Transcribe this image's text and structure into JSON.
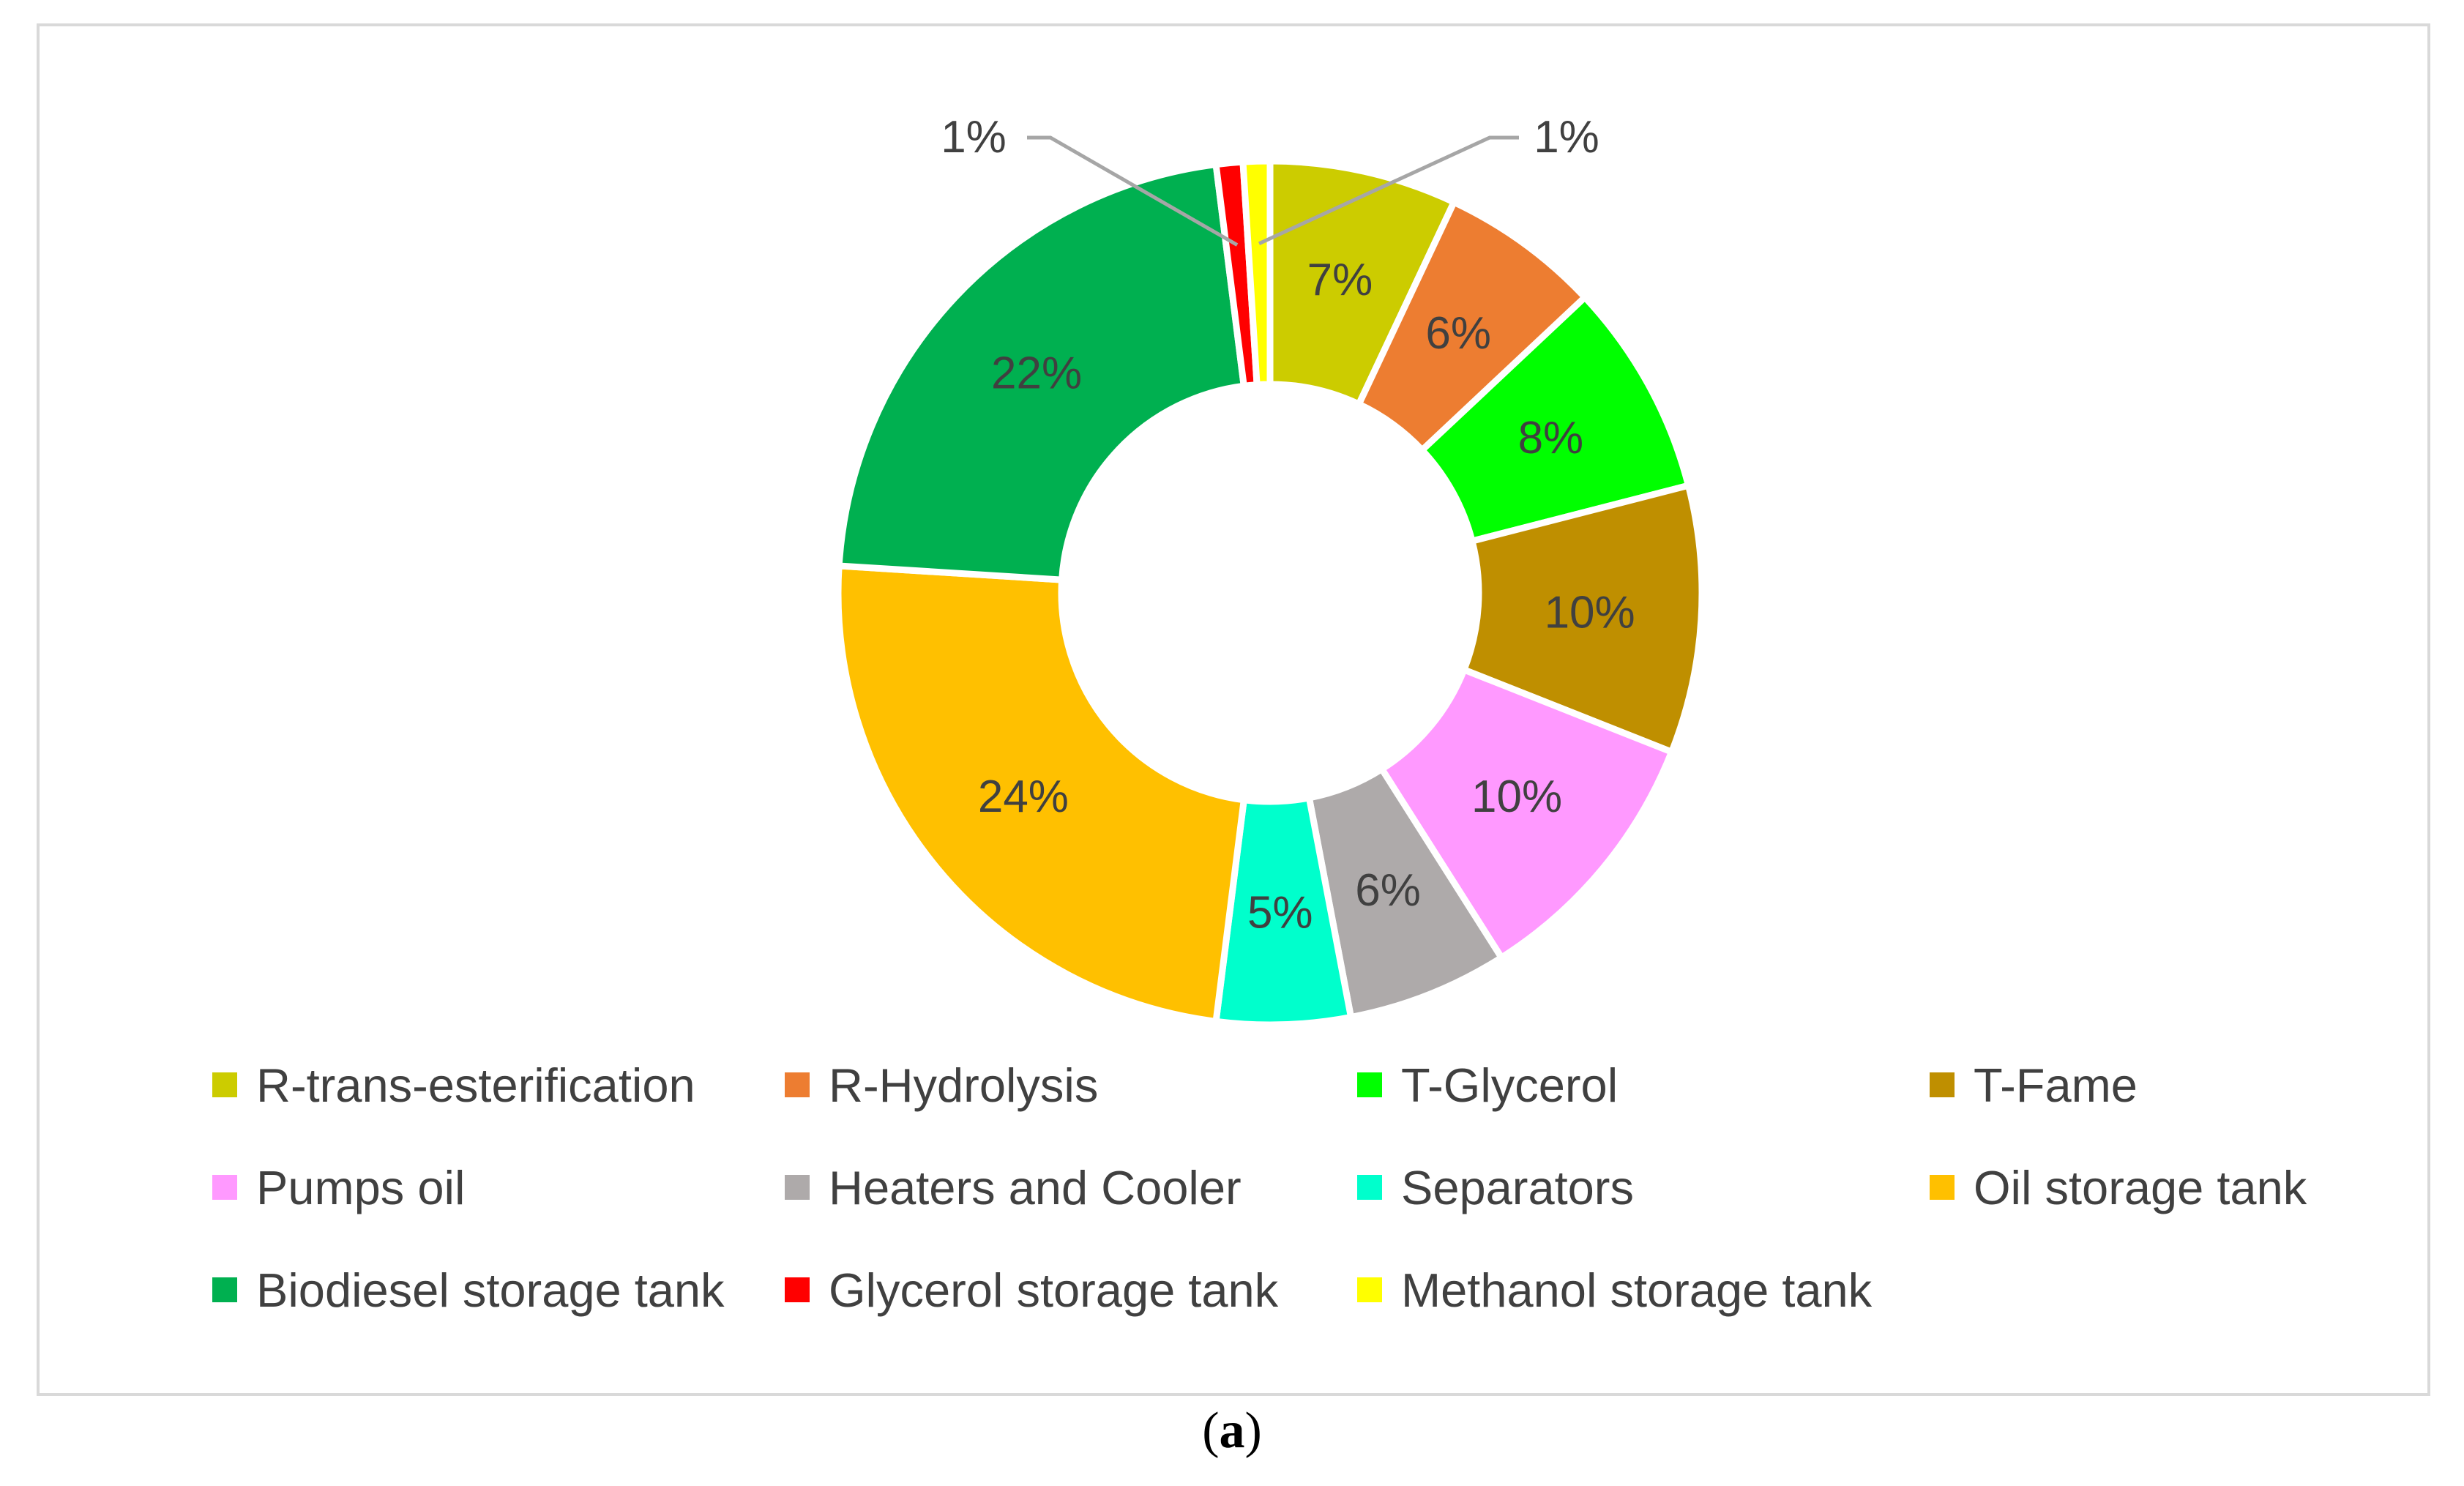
{
  "chart_data": {
    "type": "pie",
    "variant": "donut",
    "categories": [
      "R-trans-esterification",
      "R-Hydrolysis",
      "T-Glycerol",
      "T-Fame",
      "Pumps oil",
      "Heaters and Cooler",
      "Separators",
      "Oil storage tank",
      "Biodiesel storage tank",
      "Glycerol storage tank",
      "Methanol storage tank"
    ],
    "values": [
      7,
      6,
      8,
      10,
      10,
      6,
      5,
      24,
      22,
      1,
      1
    ],
    "labels": [
      "7%",
      "6%",
      "8%",
      "10%",
      "10%",
      "6%",
      "5%",
      "24%",
      "22%",
      "1%",
      "1%"
    ],
    "colors": [
      "#cccc00",
      "#ed7d31",
      "#00ff00",
      "#bf8f00",
      "#ff99ff",
      "#aeaaaa",
      "#00ffcc",
      "#ffc000",
      "#00b050",
      "#ff0000",
      "#ffff00"
    ],
    "legend_position": "bottom",
    "title": ""
  },
  "caption": {
    "open": "(",
    "letter": "a",
    "close": ")"
  }
}
